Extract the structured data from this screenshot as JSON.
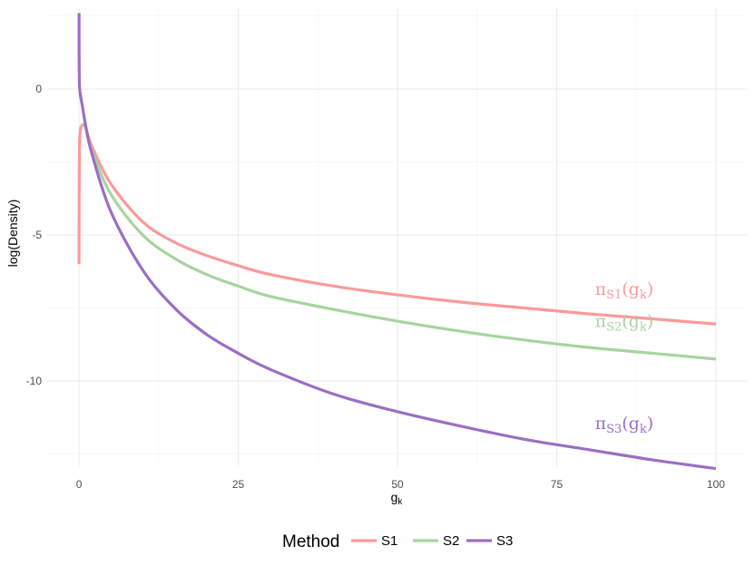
{
  "chart_data": {
    "type": "line",
    "title": "",
    "xlabel": "g",
    "xlabel_sub": "k",
    "ylabel": "log(Density)",
    "xlim": [
      -5,
      105
    ],
    "ylim": [
      -12.95,
      2.8
    ],
    "x_ticks": [
      0,
      25,
      50,
      75,
      100
    ],
    "x_tick_labels": [
      "0",
      "25",
      "50",
      "75",
      "100"
    ],
    "x_minor_ticks": [
      12.5,
      37.5,
      62.5,
      87.5
    ],
    "y_ticks": [
      0,
      -5,
      -10
    ],
    "y_tick_labels": [
      "0",
      "-5",
      "-10"
    ],
    "y_minor_ticks": [
      2.5,
      -2.5,
      -7.5,
      -12.5
    ],
    "grid": true,
    "legend": {
      "title": "Method",
      "position": "bottom",
      "entries": [
        "S1",
        "S2",
        "S3"
      ]
    },
    "series": [
      {
        "name": "S1",
        "color": "#fb9a99",
        "label": {
          "pi": "π",
          "sub": "S1",
          "open": "(g",
          "sub2": "k",
          "close": ")"
        },
        "label_at": {
          "x": 81,
          "y": -7.05
        },
        "x": [
          0.001,
          0.05,
          0.2,
          0.5,
          1,
          2,
          5,
          10,
          15,
          20,
          25,
          30,
          40,
          50,
          60,
          70,
          80,
          90,
          100
        ],
        "values": [
          -6.0,
          -2.3,
          -1.45,
          -1.25,
          -1.3,
          -1.95,
          -3.25,
          -4.55,
          -5.25,
          -5.7,
          -6.05,
          -6.35,
          -6.75,
          -7.05,
          -7.3,
          -7.5,
          -7.7,
          -7.87,
          -8.05
        ]
      },
      {
        "name": "S2",
        "color": "#a6d49f",
        "label": {
          "pi": "π",
          "sub": "S2",
          "open": "(g",
          "sub2": "k",
          "close": ")"
        },
        "label_at": {
          "x": 81,
          "y": -8.15
        },
        "x": [
          0.3,
          0.6,
          1,
          2,
          5,
          10,
          15,
          20,
          25,
          30,
          40,
          50,
          60,
          70,
          80,
          90,
          100
        ],
        "values": [
          -1.25,
          -1.22,
          -1.3,
          -2.1,
          -3.6,
          -5.0,
          -5.8,
          -6.35,
          -6.75,
          -7.1,
          -7.55,
          -7.95,
          -8.3,
          -8.6,
          -8.85,
          -9.05,
          -9.25
        ]
      },
      {
        "name": "S3",
        "color": "#9a6fc4",
        "label": {
          "pi": "π",
          "sub": "S3",
          "open": "(g",
          "sub2": "k",
          "close": ")"
        },
        "label_at": {
          "x": 81,
          "y": -11.65
        },
        "x": [
          0.001,
          0.02,
          0.1,
          0.5,
          1,
          2,
          5,
          10,
          15,
          20,
          25,
          30,
          40,
          50,
          60,
          70,
          80,
          90,
          100
        ],
        "values": [
          2.6,
          1.0,
          0.0,
          -0.55,
          -1.2,
          -2.2,
          -4.2,
          -6.2,
          -7.5,
          -8.4,
          -9.05,
          -9.6,
          -10.45,
          -11.05,
          -11.55,
          -12.0,
          -12.35,
          -12.7,
          -13.0
        ]
      }
    ]
  }
}
